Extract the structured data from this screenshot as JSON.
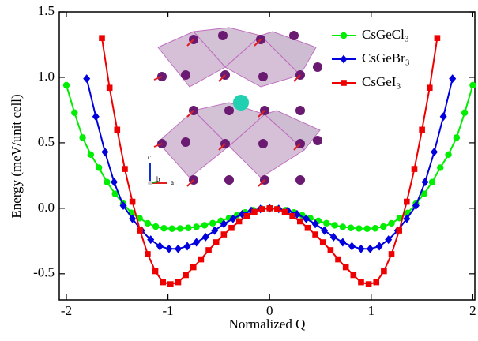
{
  "chart_data": {
    "type": "line",
    "xlabel": "Normalized Q",
    "ylabel": "Energy (meV/unit cell)",
    "xlim": [
      -2.07,
      2.02
    ],
    "ylim": [
      -0.7,
      1.5
    ],
    "xticks": [
      -2,
      -1,
      0,
      1,
      2
    ],
    "yticks": [
      -0.5,
      {
        "value": 0,
        "label": "0.0"
      },
      0.5,
      {
        "value": 1,
        "label": "1.0"
      },
      1.5
    ],
    "legend": "upper right",
    "inset_labels": [
      "c",
      "b",
      "a"
    ],
    "series": [
      {
        "name": "CsGeCl₃",
        "color": "#00ee00",
        "marker": "circle",
        "x": [
          -2,
          -1.92,
          -1.84,
          -1.76,
          -1.68,
          -1.6,
          -1.52,
          -1.44,
          -1.36,
          -1.28,
          -1.2,
          -1.12,
          -1.04,
          -0.96,
          -0.88,
          -0.8,
          -0.72,
          -0.64,
          -0.56,
          -0.48,
          -0.4,
          -0.32,
          -0.24,
          -0.16,
          -0.08,
          0,
          0.08,
          0.16,
          0.24,
          0.32,
          0.4,
          0.48,
          0.56,
          0.64,
          0.72,
          0.8,
          0.88,
          0.96,
          1.04,
          1.12,
          1.2,
          1.28,
          1.36,
          1.44,
          1.52,
          1.6,
          1.68,
          1.76,
          1.84,
          1.92,
          2
        ],
        "values": [
          0.94,
          0.73,
          0.54,
          0.41,
          0.31,
          0.2,
          0.11,
          0.035,
          -0.035,
          -0.075,
          -0.115,
          -0.14,
          -0.153,
          -0.156,
          -0.155,
          -0.15,
          -0.142,
          -0.13,
          -0.114,
          -0.096,
          -0.075,
          -0.053,
          -0.032,
          -0.015,
          -0.004,
          0,
          -0.004,
          -0.015,
          -0.032,
          -0.053,
          -0.075,
          -0.096,
          -0.114,
          -0.13,
          -0.142,
          -0.15,
          -0.155,
          -0.156,
          -0.153,
          -0.14,
          -0.115,
          -0.075,
          -0.035,
          0.035,
          0.11,
          0.2,
          0.31,
          0.41,
          0.54,
          0.73,
          0.94
        ]
      },
      {
        "name": "CsGeBr₃",
        "color": "#0000dd",
        "marker": "diamond",
        "x": [
          -1.8,
          -1.71,
          -1.62,
          -1.53,
          -1.44,
          -1.35,
          -1.26,
          -1.17,
          -1.08,
          -0.99,
          -0.9,
          -0.81,
          -0.72,
          -0.63,
          -0.54,
          -0.45,
          -0.36,
          -0.27,
          -0.18,
          -0.09,
          0,
          0.09,
          0.18,
          0.27,
          0.36,
          0.45,
          0.54,
          0.63,
          0.72,
          0.81,
          0.9,
          0.99,
          1.08,
          1.17,
          1.26,
          1.35,
          1.44,
          1.53,
          1.62,
          1.71,
          1.8
        ],
        "values": [
          0.99,
          0.7,
          0.43,
          0.2,
          0.02,
          -0.08,
          -0.17,
          -0.24,
          -0.29,
          -0.31,
          -0.31,
          -0.29,
          -0.26,
          -0.22,
          -0.17,
          -0.12,
          -0.08,
          -0.045,
          -0.02,
          -0.005,
          0,
          -0.005,
          -0.02,
          -0.045,
          -0.08,
          -0.12,
          -0.17,
          -0.22,
          -0.26,
          -0.29,
          -0.31,
          -0.31,
          -0.29,
          -0.24,
          -0.17,
          -0.08,
          0.02,
          0.2,
          0.43,
          0.7,
          0.99
        ]
      },
      {
        "name": "CsGeI₃",
        "color": "#ee0000",
        "marker": "square",
        "x": [
          -1.65,
          -1.575,
          -1.5,
          -1.425,
          -1.35,
          -1.275,
          -1.2,
          -1.125,
          -1.05,
          -0.975,
          -0.9,
          -0.825,
          -0.75,
          -0.675,
          -0.6,
          -0.525,
          -0.45,
          -0.375,
          -0.3,
          -0.225,
          -0.15,
          -0.075,
          0,
          0.075,
          0.15,
          0.225,
          0.3,
          0.375,
          0.45,
          0.525,
          0.6,
          0.675,
          0.75,
          0.825,
          0.9,
          0.975,
          1.05,
          1.125,
          1.2,
          1.275,
          1.35,
          1.425,
          1.5,
          1.575,
          1.65
        ],
        "values": [
          1.3,
          0.92,
          0.6,
          0.3,
          0.05,
          -0.17,
          -0.35,
          -0.48,
          -0.565,
          -0.58,
          -0.565,
          -0.51,
          -0.45,
          -0.39,
          -0.32,
          -0.26,
          -0.2,
          -0.15,
          -0.1,
          -0.06,
          -0.028,
          -0.007,
          0,
          -0.007,
          -0.028,
          -0.06,
          -0.1,
          -0.15,
          -0.2,
          -0.26,
          -0.32,
          -0.39,
          -0.45,
          -0.51,
          -0.565,
          -0.58,
          -0.565,
          -0.48,
          -0.35,
          -0.17,
          0.05,
          0.3,
          0.6,
          0.92,
          1.3
        ]
      }
    ]
  }
}
